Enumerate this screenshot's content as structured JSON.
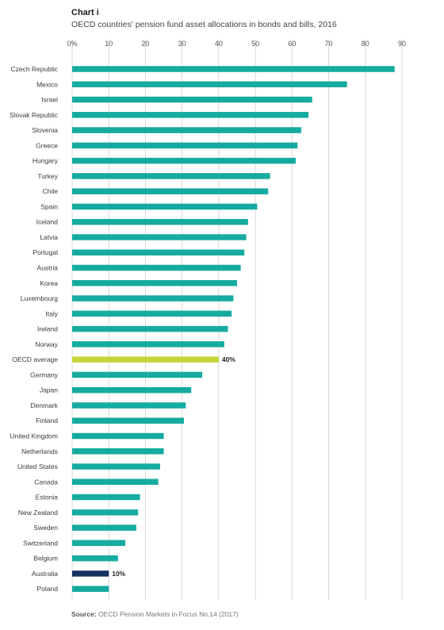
{
  "chart_data": {
    "type": "bar",
    "orientation": "horizontal",
    "title": "Chart i",
    "subtitle": "OECD countries' pension fund asset allocations in bonds and bills, 2016",
    "xlim": [
      0,
      90
    ],
    "ticks": [
      0,
      10,
      20,
      30,
      40,
      50,
      60,
      70,
      80,
      90
    ],
    "tick_labels": [
      "0%",
      "10",
      "20",
      "30",
      "40",
      "50",
      "60",
      "70",
      "80",
      "90"
    ],
    "grid": true,
    "categories": [
      "Czech Republic",
      "Mexico",
      "Israel",
      "Slovak Republic",
      "Slovenia",
      "Greece",
      "Hungary",
      "Turkey",
      "Chile",
      "Spain",
      "Iceland",
      "Latvia",
      "Portugal",
      "Austria",
      "Korea",
      "Luxembourg",
      "Italy",
      "Ireland",
      "Norway",
      "OECD average",
      "Germany",
      "Japan",
      "Denmark",
      "Finland",
      "United Kingdom",
      "Netherlands",
      "United States",
      "Canada",
      "Estonia",
      "New Zealand",
      "Sweden",
      "Switzerland",
      "Belgium",
      "Australia",
      "Poland"
    ],
    "values": [
      88,
      75,
      65.5,
      64.5,
      62.5,
      61.5,
      61,
      54,
      53.5,
      50.5,
      48,
      47.5,
      47,
      46,
      45,
      44,
      43.5,
      42.5,
      41.5,
      40,
      35.5,
      32.5,
      31,
      30.5,
      25,
      25,
      24,
      23.5,
      18.5,
      18,
      17.5,
      14.5,
      12.5,
      10,
      10
    ],
    "highlights": [
      {
        "category": "OECD average",
        "label": "40%",
        "color": "#c6d63a"
      },
      {
        "category": "Australia",
        "label": "10%",
        "color": "#14315f"
      }
    ],
    "bar_color": "#16aba0",
    "grid_color": "#cfcfcf"
  },
  "source": {
    "label": "Source:",
    "text": "OECD Pension Markets in Focus No.14 (2017)"
  }
}
